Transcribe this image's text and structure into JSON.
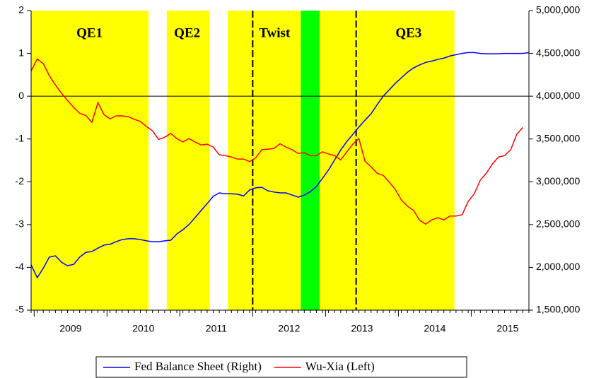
{
  "chart_data": {
    "type": "line",
    "x": [
      2008.958,
      2009.042,
      2009.125,
      2009.208,
      2009.292,
      2009.375,
      2009.458,
      2009.542,
      2009.625,
      2009.708,
      2009.792,
      2009.875,
      2009.958,
      2010.042,
      2010.125,
      2010.208,
      2010.292,
      2010.375,
      2010.458,
      2010.542,
      2010.625,
      2010.708,
      2010.792,
      2010.875,
      2010.958,
      2011.042,
      2011.125,
      2011.208,
      2011.292,
      2011.375,
      2011.458,
      2011.542,
      2011.625,
      2011.708,
      2011.792,
      2011.875,
      2011.958,
      2012.042,
      2012.125,
      2012.208,
      2012.292,
      2012.375,
      2012.458,
      2012.542,
      2012.625,
      2012.708,
      2012.792,
      2012.875,
      2012.958,
      2013.042,
      2013.125,
      2013.208,
      2013.292,
      2013.375,
      2013.458,
      2013.542,
      2013.625,
      2013.708,
      2013.792,
      2013.875,
      2013.958,
      2014.042,
      2014.125,
      2014.208,
      2014.292,
      2014.375,
      2014.458,
      2014.542,
      2014.625,
      2014.708,
      2014.792,
      2014.875,
      2014.958,
      2015.042,
      2015.125,
      2015.208,
      2015.292,
      2015.375,
      2015.458,
      2015.542,
      2015.625,
      2015.708,
      2015.792
    ],
    "series": [
      {
        "name": "Fed Balance Sheet (Right)",
        "color": "#0000ff",
        "axis": "y2",
        "values": [
          2030000,
          1880000,
          1990000,
          2120000,
          2135000,
          2060000,
          2020000,
          2035000,
          2120000,
          2175000,
          2185000,
          2225000,
          2260000,
          2270000,
          2300000,
          2325000,
          2335000,
          2335000,
          2325000,
          2310000,
          2300000,
          2300000,
          2310000,
          2317000,
          2390000,
          2440000,
          2500000,
          2580000,
          2665000,
          2745000,
          2830000,
          2870000,
          2860000,
          2860000,
          2855000,
          2835000,
          2905000,
          2930000,
          2935000,
          2895000,
          2880000,
          2870000,
          2870000,
          2845000,
          2820000,
          2845000,
          2885000,
          2945000,
          3040000,
          3140000,
          3255000,
          3370000,
          3470000,
          3555000,
          3640000,
          3720000,
          3795000,
          3900000,
          4000000,
          4075000,
          4150000,
          4215000,
          4280000,
          4330000,
          4365000,
          4395000,
          4410000,
          4430000,
          4445000,
          4470000,
          4485000,
          4500000,
          4510000,
          4510000,
          4500000,
          4495000,
          4495000,
          4495000,
          4500000,
          4500000,
          4500000,
          4500000,
          4510000
        ]
      },
      {
        "name": "Wu-Xia (Left)",
        "color": "#ff0000",
        "values": [
          0.59,
          0.87,
          0.76,
          0.48,
          0.26,
          0.07,
          -0.1,
          -0.26,
          -0.4,
          -0.45,
          -0.61,
          -0.15,
          -0.43,
          -0.53,
          -0.46,
          -0.46,
          -0.48,
          -0.54,
          -0.59,
          -0.71,
          -0.81,
          -1.01,
          -0.96,
          -0.87,
          -0.99,
          -1.07,
          -0.99,
          -1.07,
          -1.14,
          -1.12,
          -1.19,
          -1.37,
          -1.39,
          -1.42,
          -1.47,
          -1.47,
          -1.53,
          -1.44,
          -1.25,
          -1.24,
          -1.22,
          -1.11,
          -1.19,
          -1.25,
          -1.34,
          -1.32,
          -1.39,
          -1.39,
          -1.3,
          -1.35,
          -1.39,
          -1.49,
          -1.3,
          -1.12,
          -0.99,
          -1.52,
          -1.65,
          -1.8,
          -1.85,
          -2.01,
          -2.18,
          -2.43,
          -2.57,
          -2.67,
          -2.9,
          -2.99,
          -2.89,
          -2.84,
          -2.89,
          -2.8,
          -2.8,
          -2.77,
          -2.46,
          -2.28,
          -1.96,
          -1.8,
          -1.58,
          -1.42,
          -1.39,
          -1.25,
          -0.89,
          -0.73,
          null
        ]
      }
    ],
    "xlim": [
      2008.958,
      2015.792
    ],
    "xticks": [
      {
        "value": 2009.5,
        "label": "2009"
      },
      {
        "value": 2010.5,
        "label": "2010"
      },
      {
        "value": 2011.5,
        "label": "2011"
      },
      {
        "value": 2012.5,
        "label": "2012"
      },
      {
        "value": 2013.5,
        "label": "2013"
      },
      {
        "value": 2014.5,
        "label": "2014"
      },
      {
        "value": 2015.5,
        "label": "2015"
      }
    ],
    "ylim": [
      -5,
      2
    ],
    "yticks": [
      -5,
      -4,
      -3,
      -2,
      -1,
      0,
      1,
      2
    ],
    "y2lim": [
      1500000,
      5000000
    ],
    "y2ticks": [
      {
        "value": 1500000,
        "label": "1,500,000"
      },
      {
        "value": 2000000,
        "label": "2,000,000"
      },
      {
        "value": 2500000,
        "label": "2,500,000"
      },
      {
        "value": 3000000,
        "label": "3,000,000"
      },
      {
        "value": 3500000,
        "label": "3,500,000"
      },
      {
        "value": 4000000,
        "label": "4,000,000"
      },
      {
        "value": 4500000,
        "label": "4,500,000"
      },
      {
        "value": 5000000,
        "label": "5,000,000"
      }
    ],
    "shaded_regions": [
      {
        "start": 2008.958,
        "end": 2010.57,
        "color": "#ffff00"
      },
      {
        "start": 2010.82,
        "end": 2011.41,
        "color": "#ffff00"
      },
      {
        "start": 2011.66,
        "end": 2012.66,
        "color": "#ffff00"
      },
      {
        "start": 2012.66,
        "end": 2012.92,
        "color": "#00ff00"
      },
      {
        "start": 2012.92,
        "end": 2014.77,
        "color": "#ffff00"
      }
    ],
    "vlines": [
      2012.0,
      2013.42
    ],
    "hlines": [
      0
    ],
    "annotations": [
      {
        "text": "QE1",
        "x": 2009.76
      },
      {
        "text": "QE2",
        "x": 2011.1
      },
      {
        "text": "Twist",
        "x": 2012.3
      },
      {
        "text": "QE3",
        "x": 2014.14
      }
    ],
    "legend": "bottom"
  }
}
